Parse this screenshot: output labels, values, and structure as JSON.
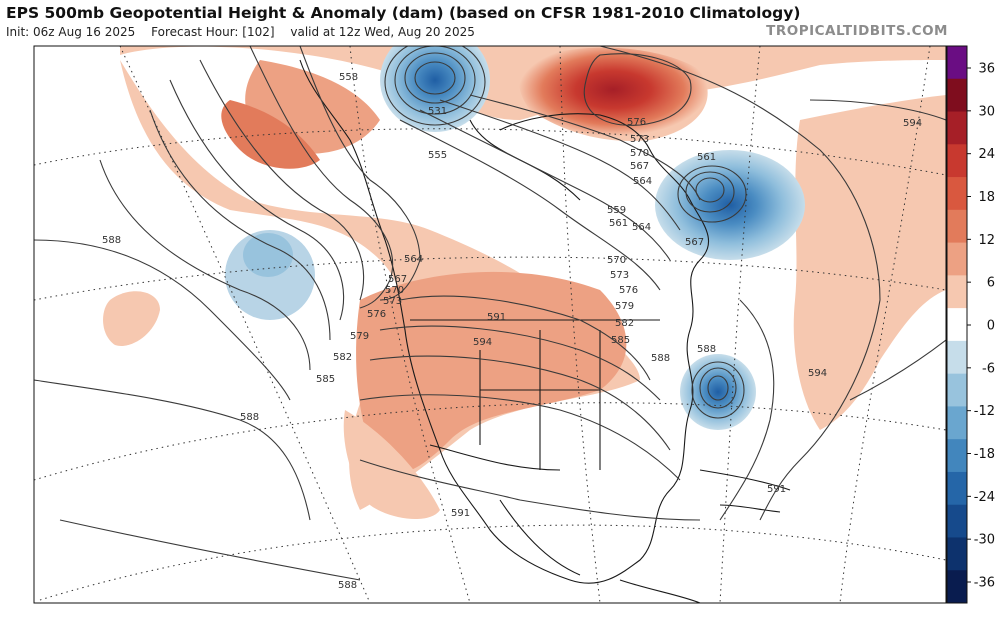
{
  "header": {
    "title": "EPS 500mb Geopotential Height & Anomaly (dam) (based on CFSR 1981-2010 Climatology)",
    "init": "Init: 06z Aug 16 2025",
    "forecast_hour": "Forecast Hour: [102]",
    "valid": "valid at 12z Wed, Aug 20 2025",
    "watermark": "TROPICALTIDBITS.COM"
  },
  "colorbar": {
    "ticks": [
      "36",
      "30",
      "24",
      "18",
      "12",
      "6",
      "0",
      "-6",
      "-12",
      "-18",
      "-24",
      "-30",
      "-36"
    ],
    "colors": [
      "#6a0d83",
      "#7f0d1e",
      "#a61f27",
      "#c8392f",
      "#d9583f",
      "#e27b5b",
      "#eda183",
      "#f6c8b0",
      "#ffffff",
      "#c6ddea",
      "#98c3dd",
      "#6aa6cf",
      "#4286bd",
      "#2566a8",
      "#164a8c",
      "#0d326d",
      "#091c4f"
    ]
  },
  "contour_labels": {
    "c558": "558",
    "c531": "531",
    "c555": "555",
    "c576": "576",
    "c573": "573",
    "c570": "570",
    "c567": "567",
    "c564": "564",
    "c561": "561",
    "c594": "594",
    "c588": "588",
    "c579": "579",
    "c582": "582",
    "c585": "585",
    "c591": "591"
  }
}
